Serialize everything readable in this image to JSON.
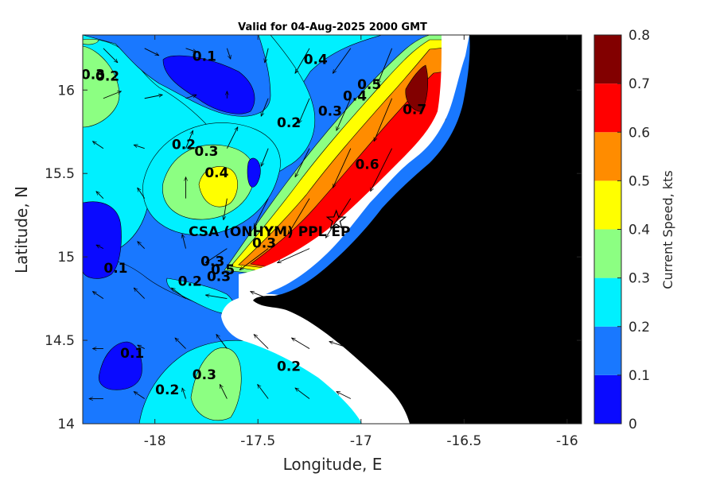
{
  "chart_data": {
    "type": "contour",
    "title": "Valid for 04-Aug-2025 2000 GMT",
    "xlabel": "Longitude, E",
    "ylabel": "Latitude, N",
    "xlim": [
      -18.35,
      -15.93
    ],
    "ylim": [
      14.0,
      16.33
    ],
    "xticks": [
      -18,
      -17.5,
      -17,
      -16.5,
      -16
    ],
    "xtick_labels": [
      "-18",
      "-17.5",
      "-17",
      "-16.5",
      "-16"
    ],
    "yticks": [
      14,
      14.5,
      15,
      15.5,
      16
    ],
    "ytick_labels": [
      "14",
      "14.5",
      "15",
      "15.5",
      "16"
    ],
    "colorbar": {
      "label": "Current Speed, kts",
      "levels": [
        0,
        0.1,
        0.2,
        0.3,
        0.4,
        0.5,
        0.6,
        0.7,
        0.8
      ],
      "tick_labels": [
        "0",
        "0.1",
        "0.2",
        "0.3",
        "0.4",
        "0.5",
        "0.6",
        "0.7",
        "0.8"
      ],
      "colors": [
        "#0a0aff",
        "#1978ff",
        "#00f0ff",
        "#8cff82",
        "#ffff00",
        "#ff8c00",
        "#ff0000",
        "#820000"
      ]
    },
    "land_color": "#000000",
    "nodata_color": "#ffffff",
    "contour_labels": [
      {
        "text": "0.1",
        "lon": -17.76,
        "lat": 16.2
      },
      {
        "text": "0.2",
        "lon": -18.23,
        "lat": 16.08
      },
      {
        "text": "0.3",
        "lon": -18.3,
        "lat": 16.09
      },
      {
        "text": "0.4",
        "lon": -17.22,
        "lat": 16.18
      },
      {
        "text": "0.4",
        "lon": -17.03,
        "lat": 15.96
      },
      {
        "text": "0.5",
        "lon": -16.96,
        "lat": 16.03
      },
      {
        "text": "0.7",
        "lon": -16.74,
        "lat": 15.88
      },
      {
        "text": "0.2",
        "lon": -17.35,
        "lat": 15.8
      },
      {
        "text": "0.3",
        "lon": -17.15,
        "lat": 15.87
      },
      {
        "text": "0.2",
        "lon": -17.86,
        "lat": 15.67
      },
      {
        "text": "0.3",
        "lon": -17.75,
        "lat": 15.63
      },
      {
        "text": "0.4",
        "lon": -17.7,
        "lat": 15.5
      },
      {
        "text": "0.6",
        "lon": -16.97,
        "lat": 15.55
      },
      {
        "text": "0.1",
        "lon": -18.19,
        "lat": 14.93
      },
      {
        "text": "0.3",
        "lon": -17.72,
        "lat": 14.97
      },
      {
        "text": "0.2",
        "lon": -17.83,
        "lat": 14.85
      },
      {
        "text": "0.5",
        "lon": -17.67,
        "lat": 14.92
      },
      {
        "text": "0.3",
        "lon": -17.69,
        "lat": 14.88
      },
      {
        "text": "0.3",
        "lon": -17.47,
        "lat": 15.08
      },
      {
        "text": "0.1",
        "lon": -18.11,
        "lat": 14.42
      },
      {
        "text": "0.2",
        "lon": -17.94,
        "lat": 14.2
      },
      {
        "text": "0.3",
        "lon": -17.76,
        "lat": 14.29
      },
      {
        "text": "0.2",
        "lon": -17.35,
        "lat": 14.34
      }
    ],
    "site_marker": {
      "label": "CSA (ONHYM) PPL EP",
      "lon": -17.12,
      "lat": 15.22,
      "symbol": "star"
    },
    "vector_field": {
      "description_units": "current direction arrows",
      "samples": [
        {
          "lon": -18.25,
          "lat": 16.25,
          "u": 0.2,
          "v": -0.2
        },
        {
          "lon": -18.05,
          "lat": 16.25,
          "u": 0.2,
          "v": -0.1
        },
        {
          "lon": -17.85,
          "lat": 16.25,
          "u": 0.15,
          "v": -0.05
        },
        {
          "lon": -17.65,
          "lat": 16.25,
          "u": 0.05,
          "v": -0.15
        },
        {
          "lon": -17.45,
          "lat": 16.25,
          "u": -0.05,
          "v": -0.2
        },
        {
          "lon": -17.25,
          "lat": 16.25,
          "u": -0.2,
          "v": -0.35
        },
        {
          "lon": -17.05,
          "lat": 16.25,
          "u": -0.25,
          "v": -0.35
        },
        {
          "lon": -16.85,
          "lat": 16.25,
          "u": -0.2,
          "v": -0.5
        },
        {
          "lon": -18.25,
          "lat": 15.95,
          "u": 0.25,
          "v": 0.1
        },
        {
          "lon": -18.05,
          "lat": 15.95,
          "u": 0.25,
          "v": 0.05
        },
        {
          "lon": -17.85,
          "lat": 15.95,
          "u": 0.15,
          "v": 0.05
        },
        {
          "lon": -17.65,
          "lat": 15.95,
          "u": 0.0,
          "v": 0.1
        },
        {
          "lon": -17.45,
          "lat": 15.95,
          "u": -0.1,
          "v": -0.25
        },
        {
          "lon": -17.25,
          "lat": 15.95,
          "u": -0.15,
          "v": -0.35
        },
        {
          "lon": -17.05,
          "lat": 15.95,
          "u": -0.2,
          "v": -0.45
        },
        {
          "lon": -16.85,
          "lat": 15.95,
          "u": -0.25,
          "v": -0.6
        },
        {
          "lon": -18.25,
          "lat": 15.65,
          "u": -0.15,
          "v": 0.1
        },
        {
          "lon": -18.05,
          "lat": 15.65,
          "u": -0.15,
          "v": 0.05
        },
        {
          "lon": -17.85,
          "lat": 15.65,
          "u": 0.1,
          "v": 0.25
        },
        {
          "lon": -17.65,
          "lat": 15.65,
          "u": 0.15,
          "v": 0.3
        },
        {
          "lon": -17.45,
          "lat": 15.65,
          "u": -0.1,
          "v": -0.25
        },
        {
          "lon": -17.25,
          "lat": 15.65,
          "u": -0.2,
          "v": -0.4
        },
        {
          "lon": -17.05,
          "lat": 15.65,
          "u": -0.25,
          "v": -0.55
        },
        {
          "lon": -16.85,
          "lat": 15.65,
          "u": -0.3,
          "v": -0.6
        },
        {
          "lon": -18.25,
          "lat": 15.35,
          "u": -0.1,
          "v": 0.1
        },
        {
          "lon": -18.05,
          "lat": 15.35,
          "u": -0.1,
          "v": 0.15
        },
        {
          "lon": -17.85,
          "lat": 15.35,
          "u": 0.0,
          "v": 0.3
        },
        {
          "lon": -17.65,
          "lat": 15.35,
          "u": -0.05,
          "v": -0.3
        },
        {
          "lon": -17.45,
          "lat": 15.35,
          "u": -0.2,
          "v": -0.4
        },
        {
          "lon": -17.25,
          "lat": 15.35,
          "u": -0.3,
          "v": -0.5
        },
        {
          "lon": -17.05,
          "lat": 15.35,
          "u": -0.35,
          "v": -0.55
        },
        {
          "lon": -18.25,
          "lat": 15.05,
          "u": -0.1,
          "v": 0.05
        },
        {
          "lon": -18.05,
          "lat": 15.05,
          "u": -0.1,
          "v": 0.1
        },
        {
          "lon": -17.85,
          "lat": 15.05,
          "u": -0.05,
          "v": 0.2
        },
        {
          "lon": -17.65,
          "lat": 15.05,
          "u": -0.3,
          "v": -0.2
        },
        {
          "lon": -17.45,
          "lat": 15.05,
          "u": -0.4,
          "v": -0.3
        },
        {
          "lon": -17.25,
          "lat": 15.05,
          "u": -0.45,
          "v": -0.2
        },
        {
          "lon": -18.25,
          "lat": 14.75,
          "u": -0.15,
          "v": 0.1
        },
        {
          "lon": -18.05,
          "lat": 14.75,
          "u": -0.15,
          "v": 0.15
        },
        {
          "lon": -17.85,
          "lat": 14.75,
          "u": -0.2,
          "v": 0.15
        },
        {
          "lon": -17.65,
          "lat": 14.75,
          "u": -0.3,
          "v": 0.05
        },
        {
          "lon": -17.45,
          "lat": 14.75,
          "u": -0.25,
          "v": 0.1
        },
        {
          "lon": -18.25,
          "lat": 14.45,
          "u": -0.15,
          "v": 0.0
        },
        {
          "lon": -18.05,
          "lat": 14.45,
          "u": -0.1,
          "v": 0.05
        },
        {
          "lon": -17.85,
          "lat": 14.45,
          "u": -0.15,
          "v": 0.15
        },
        {
          "lon": -17.65,
          "lat": 14.45,
          "u": -0.15,
          "v": 0.2
        },
        {
          "lon": -17.45,
          "lat": 14.45,
          "u": -0.2,
          "v": 0.2
        },
        {
          "lon": -17.25,
          "lat": 14.45,
          "u": -0.25,
          "v": 0.15
        },
        {
          "lon": -17.05,
          "lat": 14.45,
          "u": -0.3,
          "v": 0.1
        },
        {
          "lon": -18.25,
          "lat": 14.15,
          "u": -0.2,
          "v": 0.0
        },
        {
          "lon": -18.05,
          "lat": 14.15,
          "u": -0.15,
          "v": 0.1
        },
        {
          "lon": -17.85,
          "lat": 14.15,
          "u": -0.05,
          "v": 0.15
        },
        {
          "lon": -17.65,
          "lat": 14.15,
          "u": -0.1,
          "v": 0.2
        },
        {
          "lon": -17.45,
          "lat": 14.15,
          "u": -0.15,
          "v": 0.2
        },
        {
          "lon": -17.25,
          "lat": 14.15,
          "u": -0.2,
          "v": 0.15
        },
        {
          "lon": -17.05,
          "lat": 14.15,
          "u": -0.2,
          "v": 0.1
        }
      ]
    }
  }
}
